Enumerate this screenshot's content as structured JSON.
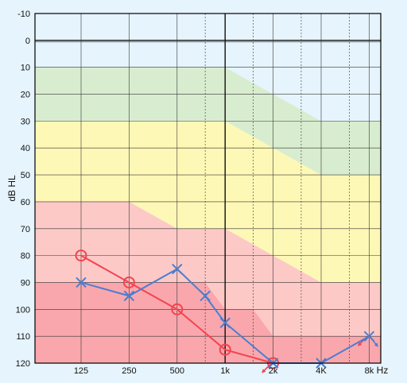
{
  "chart_data": {
    "type": "line",
    "xlabel": "Hz",
    "ylabel": "dB HL",
    "ylim": [
      -10,
      120
    ],
    "y_inverted": true,
    "y_ticks": [
      -10,
      0,
      10,
      20,
      30,
      40,
      50,
      60,
      70,
      80,
      90,
      100,
      110,
      120
    ],
    "x_log_scale": true,
    "x_ticks": [
      {
        "value": 125,
        "label": "125"
      },
      {
        "value": 250,
        "label": "250"
      },
      {
        "value": 500,
        "label": "500"
      },
      {
        "value": 1000,
        "label": "1k"
      },
      {
        "value": 2000,
        "label": "2k"
      },
      {
        "value": 4000,
        "label": "4K"
      },
      {
        "value": 8000,
        "label": "8k"
      }
    ],
    "intermediate_frequencies": [
      750,
      1500,
      3000,
      6000
    ],
    "grid": true,
    "bands": [
      {
        "color": "#d8edcf",
        "top": [
          [
            125,
            10
          ],
          [
            1000,
            10
          ],
          [
            4000,
            30
          ],
          [
            8000,
            30
          ],
          [
            10000,
            30
          ]
        ],
        "bottom": [
          [
            125,
            30
          ],
          [
            1000,
            30
          ],
          [
            4000,
            50
          ],
          [
            8000,
            50
          ],
          [
            10000,
            50
          ]
        ]
      },
      {
        "color": "#fef8b6",
        "top": [
          [
            125,
            30
          ],
          [
            1000,
            30
          ],
          [
            4000,
            50
          ],
          [
            10000,
            50
          ]
        ],
        "bottom": [
          [
            125,
            60
          ],
          [
            250,
            60
          ],
          [
            500,
            70
          ],
          [
            1000,
            70
          ],
          [
            4000,
            90
          ],
          [
            10000,
            90
          ]
        ]
      },
      {
        "color": "#fdc9c7",
        "top": [
          [
            125,
            60
          ],
          [
            250,
            60
          ],
          [
            500,
            70
          ],
          [
            1000,
            70
          ],
          [
            4000,
            90
          ],
          [
            10000,
            90
          ]
        ],
        "bottom": [
          [
            125,
            90
          ],
          [
            750,
            90
          ],
          [
            1000,
            100
          ],
          [
            1500,
            100
          ],
          [
            2000,
            110
          ],
          [
            10000,
            110
          ]
        ]
      },
      {
        "color": "#f9a7ac",
        "top": [
          [
            125,
            90
          ],
          [
            750,
            90
          ],
          [
            1000,
            100
          ],
          [
            1500,
            100
          ],
          [
            2000,
            110
          ],
          [
            10000,
            110
          ]
        ],
        "bottom": [
          [
            125,
            120
          ],
          [
            10000,
            120
          ]
        ]
      }
    ],
    "series": [
      {
        "color": "#f4434f",
        "marker": "circle",
        "points": [
          [
            125,
            80
          ],
          [
            250,
            90
          ],
          [
            500,
            100
          ],
          [
            1000,
            115
          ],
          [
            2000,
            120
          ]
        ],
        "no_response_arrows": [
          [
            2000,
            120
          ],
          [
            8000,
            110
          ]
        ]
      },
      {
        "color": "#4a7ed3",
        "marker": "cross",
        "points": [
          [
            125,
            90
          ],
          [
            250,
            95
          ],
          [
            500,
            85
          ],
          [
            750,
            95
          ],
          [
            1000,
            105
          ],
          [
            2000,
            120
          ],
          [
            4000,
            120
          ],
          [
            8000,
            110
          ]
        ],
        "no_response_arrows": [
          [
            8000,
            110
          ]
        ]
      }
    ],
    "colors": {
      "background": "#e6f4fd",
      "grid": "#333333",
      "axis": "#000000"
    }
  }
}
